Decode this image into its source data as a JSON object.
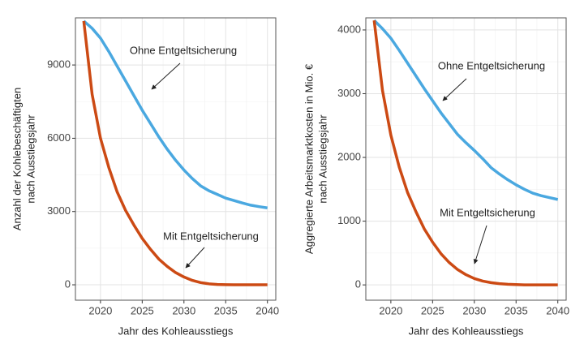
{
  "chart_data": [
    {
      "type": "line",
      "ylabel": [
        "Anzahl der Kohlebeschäftigten",
        "nach Ausstiegsjahr"
      ],
      "xlabel": "Jahr des Kohleausstiegs",
      "x": [
        2018,
        2019,
        2020,
        2021,
        2022,
        2023,
        2024,
        2025,
        2026,
        2027,
        2028,
        2029,
        2030,
        2031,
        2032,
        2033,
        2034,
        2035,
        2036,
        2037,
        2038,
        2039,
        2040
      ],
      "xlim": [
        2017,
        2041
      ],
      "xticks": [
        2020,
        2025,
        2030,
        2035,
        2040
      ],
      "ylim": [
        -630,
        10930
      ],
      "yticks": [
        0,
        3000,
        6000,
        9000
      ],
      "grid": true,
      "series": [
        {
          "name": "Ohne Entgeltsicherung",
          "color": "#4aa8e0",
          "values": [
            10800,
            10500,
            10100,
            9550,
            8950,
            8350,
            7750,
            7150,
            6600,
            6050,
            5550,
            5100,
            4700,
            4350,
            4050,
            3850,
            3700,
            3550,
            3450,
            3350,
            3260,
            3200,
            3150
          ]
        },
        {
          "name": "Mit Entgeltsicherung",
          "color": "#cc4a14",
          "values": [
            10800,
            7800,
            6000,
            4800,
            3800,
            3050,
            2450,
            1900,
            1450,
            1050,
            750,
            500,
            320,
            180,
            90,
            40,
            15,
            5,
            0,
            0,
            0,
            0,
            0
          ]
        }
      ]
    },
    {
      "type": "line",
      "ylabel": [
        "Aggregierte Arbeitsmarktkosten in Mio. €",
        "nach Ausstiegsjahr"
      ],
      "xlabel": "Jahr des Kohleausstiegs",
      "x": [
        2018,
        2019,
        2020,
        2021,
        2022,
        2023,
        2024,
        2025,
        2026,
        2027,
        2028,
        2029,
        2030,
        2031,
        2032,
        2033,
        2034,
        2035,
        2036,
        2037,
        2038,
        2039,
        2040
      ],
      "xlim": [
        2017,
        2041
      ],
      "xticks": [
        2020,
        2025,
        2030,
        2035,
        2040
      ],
      "ylim": [
        -240,
        4190
      ],
      "yticks": [
        0,
        1000,
        2000,
        3000,
        4000
      ],
      "grid": true,
      "series": [
        {
          "name": "Ohne Entgeltsicherung",
          "color": "#4aa8e0",
          "values": [
            4150,
            4020,
            3870,
            3680,
            3480,
            3280,
            3080,
            2890,
            2700,
            2530,
            2360,
            2230,
            2110,
            1980,
            1840,
            1740,
            1650,
            1570,
            1500,
            1440,
            1400,
            1370,
            1340
          ]
        },
        {
          "name": "Mit Entgeltsicherung",
          "color": "#cc4a14",
          "values": [
            4150,
            3050,
            2350,
            1850,
            1450,
            1150,
            880,
            670,
            490,
            350,
            240,
            160,
            100,
            60,
            35,
            20,
            10,
            5,
            0,
            0,
            0,
            0,
            0
          ]
        }
      ]
    }
  ]
}
